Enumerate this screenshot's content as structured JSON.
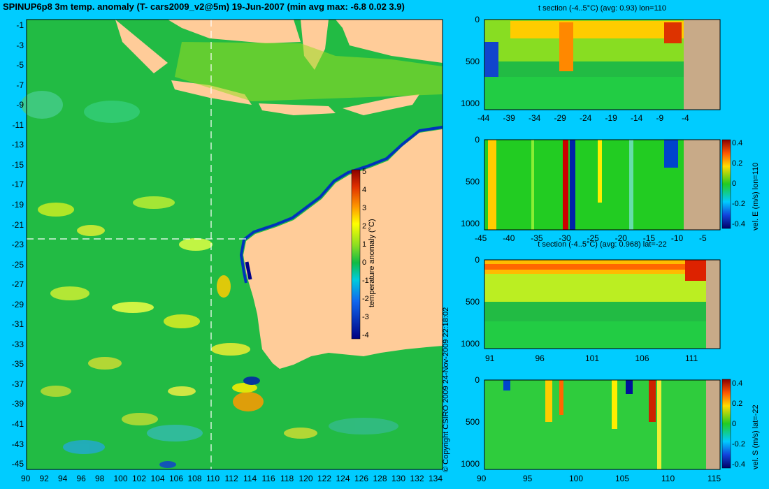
{
  "title": "SPINUP6p8 3m temp. anomaly (T- cars2009_v2@5m) 19-Jun-2007 (min avg max: -6.8 0.02 3.9)",
  "map": {
    "lat_ticks": [
      "-1",
      "-3",
      "-5",
      "-7",
      "-9",
      "-11",
      "-13",
      "-15",
      "-17",
      "-19",
      "-21",
      "-23",
      "-25",
      "-27",
      "-29",
      "-31",
      "-33",
      "-35",
      "-37",
      "-39",
      "-41",
      "-43",
      "-45"
    ],
    "lon_ticks": [
      "90",
      "92",
      "94",
      "96",
      "98",
      "100",
      "102",
      "104",
      "106",
      "108",
      "110",
      "112",
      "114",
      "116",
      "118",
      "120",
      "122",
      "124",
      "126",
      "128",
      "130",
      "132",
      "134"
    ],
    "colorbar": {
      "ticks": [
        "5",
        "4",
        "3",
        "2",
        "1",
        "0",
        "-1",
        "-2",
        "-3",
        "-4"
      ],
      "label": "temperature anomaly (°C)"
    }
  },
  "copyright": "© Copyright CSIRO 2009   24-Nov-2009 22:18:02",
  "panels": [
    {
      "title": "t section (-4..5°C) (avg: 0.93) lon=110",
      "y_ticks": [
        "0",
        "500",
        "1000"
      ],
      "x_ticks": [
        "-44",
        "-39",
        "-34",
        "-29",
        "-24",
        "-19",
        "-14",
        "-9",
        "-4"
      ],
      "colorbar": null
    },
    {
      "title": "",
      "y_ticks": [
        "0",
        "500",
        "1000"
      ],
      "x_ticks": [
        "-45",
        "-40",
        "-35",
        "-30",
        "-25",
        "-20",
        "-15",
        "-10",
        "-5"
      ],
      "colorbar": {
        "ticks": [
          "0.4",
          "0.2",
          "0",
          "-0.2",
          "-0.4"
        ],
        "label": "vel. E (m/s) lon=110"
      }
    },
    {
      "title": "t section (-4..5°C) (avg: 0.968) lat=-22",
      "y_ticks": [
        "0",
        "500",
        "1000"
      ],
      "x_ticks": [
        "91",
        "96",
        "101",
        "106",
        "111"
      ],
      "colorbar": null
    },
    {
      "title": "",
      "y_ticks": [
        "0",
        "500",
        "1000"
      ],
      "x_ticks": [
        "90",
        "95",
        "100",
        "105",
        "110",
        "115"
      ],
      "colorbar": {
        "ticks": [
          "0.4",
          "0.2",
          "0",
          "-0.2",
          "-0.4"
        ],
        "label": "vel. S (m/s) lat=-22"
      }
    }
  ],
  "colors": {
    "background": "#00ccff",
    "land": "#ffcc99",
    "ocean_base": "#22bb44",
    "section_land": "#c8aa88"
  }
}
